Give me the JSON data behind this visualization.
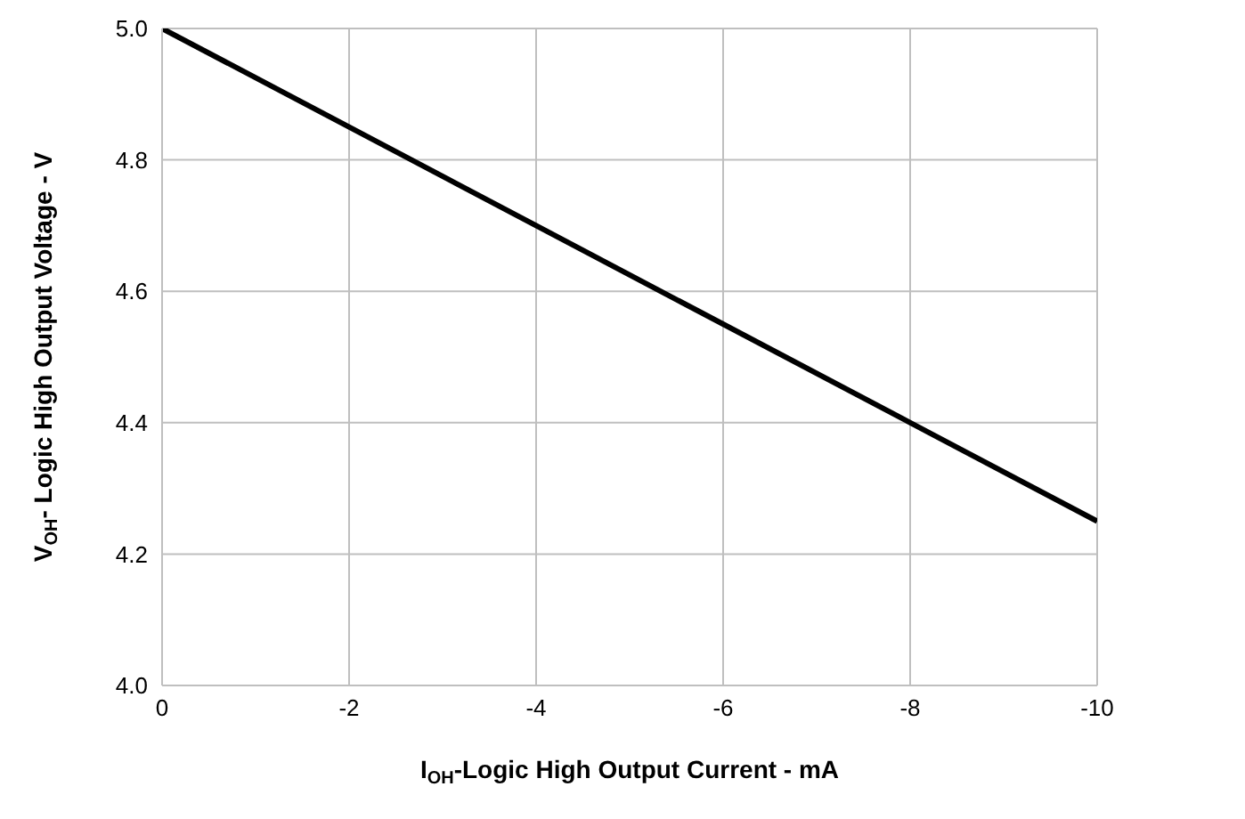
{
  "chart_data": {
    "type": "line",
    "xlabel": "I$_{OH}$-Logic High Output Current - mA",
    "ylabel": "V$_{OH}$- Logic High Output Voltage - V",
    "x": [
      0,
      -10
    ],
    "series": [
      {
        "color": "#000000",
        "values": [
          5.0,
          4.25
        ]
      }
    ],
    "xlim": [
      0,
      -10
    ],
    "xticks": [
      0,
      -2,
      -4,
      -6,
      -8,
      -10
    ],
    "ylim": [
      4,
      5
    ],
    "yticks": [
      {
        "value": 4,
        "label": "4.0"
      },
      4.2,
      4.4,
      4.6,
      4.8,
      {
        "value": 5,
        "label": "5.0"
      }
    ],
    "grid": true,
    "marker": "none",
    "line_style": "solid"
  }
}
